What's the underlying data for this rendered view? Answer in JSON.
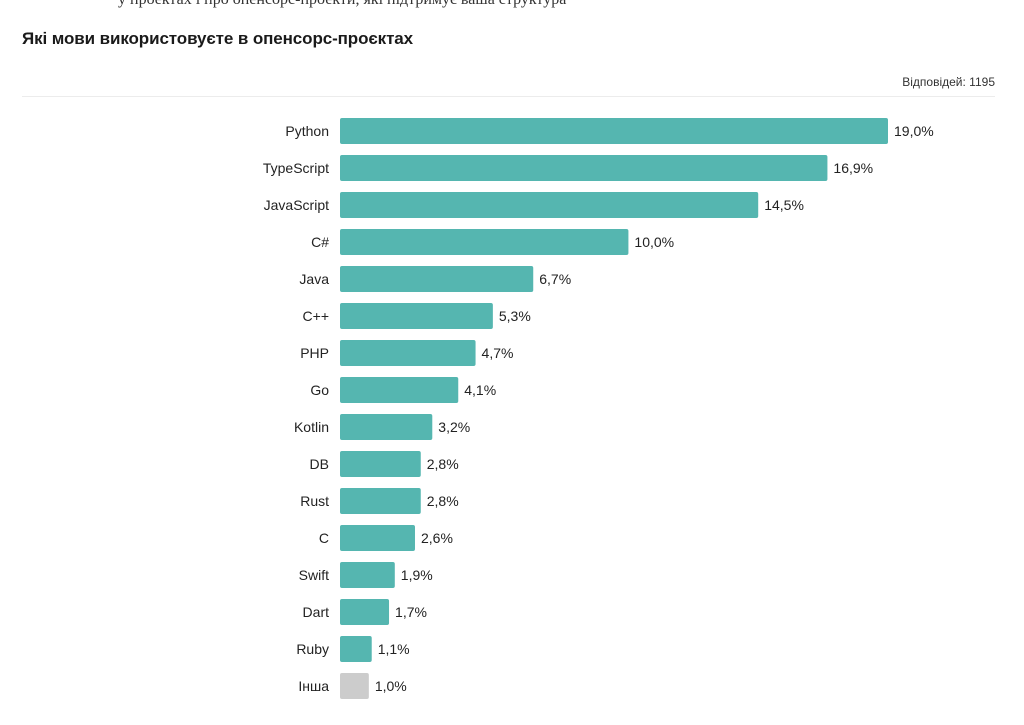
{
  "header": {
    "clipped_text": "у проектах і про опенсорс-проекти, які підтримує ваша структура",
    "title": "Які мови використовуєте в опенсорс-проєктах",
    "responses": "Відповідей: 1195"
  },
  "colors": {
    "bar": "#55b6b0",
    "bar_other": "#cccccc"
  },
  "chart_data": {
    "type": "bar",
    "orientation": "horizontal",
    "title": "Які мови використовуєте в опенсорс-проєктах",
    "categories": [
      "Python",
      "TypeScript",
      "JavaScript",
      "C#",
      "Java",
      "C++",
      "PHP",
      "Go",
      "Kotlin",
      "DB",
      "Rust",
      "C",
      "Swift",
      "Dart",
      "Ruby",
      "Інша"
    ],
    "values": [
      19.0,
      16.9,
      14.5,
      10.0,
      6.7,
      5.3,
      4.7,
      4.1,
      3.2,
      2.8,
      2.8,
      2.6,
      1.9,
      1.7,
      1.1,
      1.0
    ],
    "value_labels": [
      "19,0%",
      "16,9%",
      "14,5%",
      "10,0%",
      "6,7%",
      "5,3%",
      "4,7%",
      "4,1%",
      "3,2%",
      "2,8%",
      "2,8%",
      "2,6%",
      "1,9%",
      "1,7%",
      "1,1%",
      "1,0%"
    ],
    "unit": "%",
    "xlim": [
      0,
      19.0
    ],
    "grid": false,
    "legend": "none"
  }
}
